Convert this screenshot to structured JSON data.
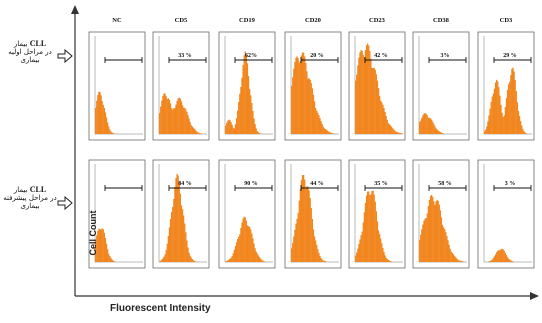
{
  "chart_data": {
    "type": "histogram-panel-grid",
    "xlabel": "Fluorescent Intensity",
    "ylabel": "Cell Count",
    "columns": [
      "NC",
      "CD5",
      "CD19",
      "CD20",
      "CD23",
      "CD38",
      "CD3"
    ],
    "rows": [
      {
        "label_prefix": "CLL",
        "label_lines": [
          "بیمار",
          "در مراحل اولیه",
          "بیماری"
        ],
        "percents": [
          "",
          "33 %",
          "62%",
          "20 %",
          "42 %",
          "3%",
          "29 %"
        ],
        "peaks": [
          [
            {
              "c": 0.1,
              "w": 0.1,
              "h": 0.45
            }
          ],
          [
            {
              "c": 0.14,
              "w": 0.12,
              "h": 0.45
            },
            {
              "c": 0.42,
              "w": 0.16,
              "h": 0.38
            }
          ],
          [
            {
              "c": 0.08,
              "w": 0.08,
              "h": 0.15
            },
            {
              "c": 0.42,
              "w": 0.1,
              "h": 0.86
            }
          ],
          [
            {
              "c": 0.2,
              "w": 0.22,
              "h": 0.88
            }
          ],
          [
            {
              "c": 0.22,
              "w": 0.24,
              "h": 0.96
            }
          ],
          [
            {
              "c": 0.14,
              "w": 0.14,
              "h": 0.22
            }
          ],
          [
            {
              "c": 0.25,
              "w": 0.1,
              "h": 0.58
            },
            {
              "c": 0.58,
              "w": 0.1,
              "h": 0.72
            }
          ]
        ]
      },
      {
        "label_prefix": "CLL",
        "label_lines": [
          "بیمار",
          "در مراحل پیشرفته",
          "بیماری"
        ],
        "percents": [
          "",
          "84 %",
          "90 %",
          "44 %",
          "35 %",
          "58 %",
          "3 %"
        ],
        "peaks": [
          [
            {
              "c": 0.12,
              "w": 0.1,
              "h": 0.4
            }
          ],
          [
            {
              "c": 0.38,
              "w": 0.12,
              "h": 0.92
            }
          ],
          [
            {
              "c": 0.42,
              "w": 0.14,
              "h": 0.48
            }
          ],
          [
            {
              "c": 0.28,
              "w": 0.14,
              "h": 0.95
            }
          ],
          [
            {
              "c": 0.32,
              "w": 0.14,
              "h": 0.82
            }
          ],
          [
            {
              "c": 0.3,
              "w": 0.2,
              "h": 0.72
            }
          ],
          [
            {
              "c": 0.35,
              "w": 0.1,
              "h": 0.15
            }
          ]
        ]
      }
    ]
  }
}
